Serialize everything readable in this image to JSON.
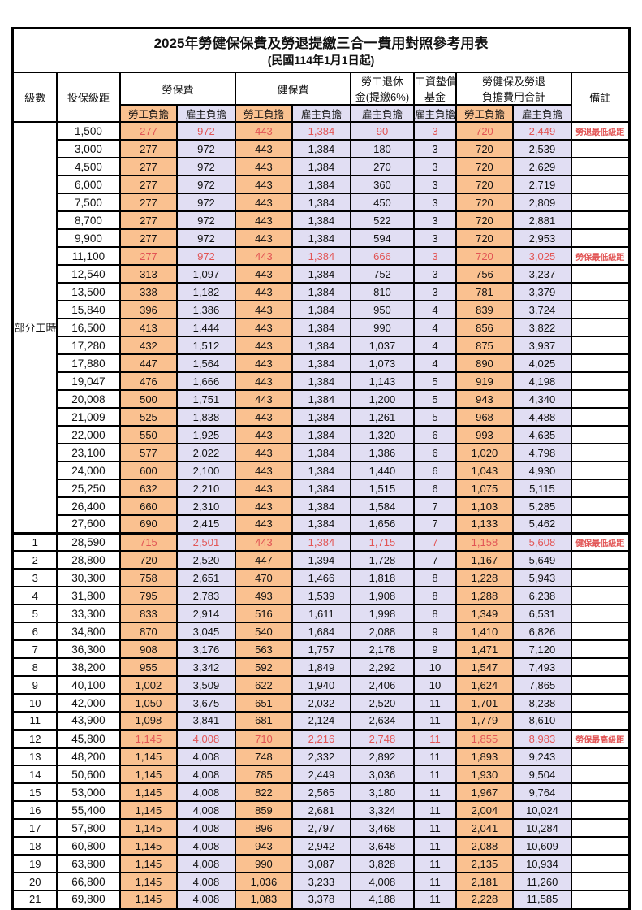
{
  "title": "2025年勞健保保費及勞退提繳三合一費用對照參考用表",
  "subtitle": "(民國114年1月1日起)",
  "colors": {
    "employee_bg": "#fac190",
    "employer_bg": "#e1def3",
    "highlight_red": "#e25555",
    "border": "#000000"
  },
  "header": {
    "level": "級數",
    "bracket": "投保級距",
    "labor_insurance": "勞保費",
    "health_insurance": "健保費",
    "pension_line1": "勞工退休",
    "pension_line2": "金(提繳6%)",
    "wage_fund_line1": "工資墊償",
    "wage_fund_line2": "基金",
    "total_line1": "勞健保及勞退",
    "total_line2": "負擔費用合計",
    "remark": "備註",
    "employee_share": "勞工負擔",
    "employer_share": "雇主負擔",
    "part_time_label": "部分工時"
  },
  "part_time_rows": 23,
  "rows": [
    {
      "level": null,
      "bracket": "1,500",
      "values": [
        "277",
        "972",
        "443",
        "1,384",
        "90",
        "3",
        "720",
        "2,449"
      ],
      "note": "勞退最低級距",
      "red": true,
      "thick": false
    },
    {
      "level": null,
      "bracket": "3,000",
      "values": [
        "277",
        "972",
        "443",
        "1,384",
        "180",
        "3",
        "720",
        "2,539"
      ],
      "note": "",
      "red": false,
      "thick": false
    },
    {
      "level": null,
      "bracket": "4,500",
      "values": [
        "277",
        "972",
        "443",
        "1,384",
        "270",
        "3",
        "720",
        "2,629"
      ],
      "note": "",
      "red": false,
      "thick": false
    },
    {
      "level": null,
      "bracket": "6,000",
      "values": [
        "277",
        "972",
        "443",
        "1,384",
        "360",
        "3",
        "720",
        "2,719"
      ],
      "note": "",
      "red": false,
      "thick": false
    },
    {
      "level": null,
      "bracket": "7,500",
      "values": [
        "277",
        "972",
        "443",
        "1,384",
        "450",
        "3",
        "720",
        "2,809"
      ],
      "note": "",
      "red": false,
      "thick": false
    },
    {
      "level": null,
      "bracket": "8,700",
      "values": [
        "277",
        "972",
        "443",
        "1,384",
        "522",
        "3",
        "720",
        "2,881"
      ],
      "note": "",
      "red": false,
      "thick": false
    },
    {
      "level": null,
      "bracket": "9,900",
      "values": [
        "277",
        "972",
        "443",
        "1,384",
        "594",
        "3",
        "720",
        "2,953"
      ],
      "note": "",
      "red": false,
      "thick": false
    },
    {
      "level": null,
      "bracket": "11,100",
      "values": [
        "277",
        "972",
        "443",
        "1,384",
        "666",
        "3",
        "720",
        "3,025"
      ],
      "note": "勞保最低級距",
      "red": true,
      "thick": false
    },
    {
      "level": null,
      "bracket": "12,540",
      "values": [
        "313",
        "1,097",
        "443",
        "1,384",
        "752",
        "3",
        "756",
        "3,237"
      ],
      "note": "",
      "red": false,
      "thick": false
    },
    {
      "level": null,
      "bracket": "13,500",
      "values": [
        "338",
        "1,182",
        "443",
        "1,384",
        "810",
        "3",
        "781",
        "3,379"
      ],
      "note": "",
      "red": false,
      "thick": false
    },
    {
      "level": null,
      "bracket": "15,840",
      "values": [
        "396",
        "1,386",
        "443",
        "1,384",
        "950",
        "4",
        "839",
        "3,724"
      ],
      "note": "",
      "red": false,
      "thick": false
    },
    {
      "level": null,
      "bracket": "16,500",
      "values": [
        "413",
        "1,444",
        "443",
        "1,384",
        "990",
        "4",
        "856",
        "3,822"
      ],
      "note": "",
      "red": false,
      "thick": false
    },
    {
      "level": null,
      "bracket": "17,280",
      "values": [
        "432",
        "1,512",
        "443",
        "1,384",
        "1,037",
        "4",
        "875",
        "3,937"
      ],
      "note": "",
      "red": false,
      "thick": false
    },
    {
      "level": null,
      "bracket": "17,880",
      "values": [
        "447",
        "1,564",
        "443",
        "1,384",
        "1,073",
        "4",
        "890",
        "4,025"
      ],
      "note": "",
      "red": false,
      "thick": false
    },
    {
      "level": null,
      "bracket": "19,047",
      "values": [
        "476",
        "1,666",
        "443",
        "1,384",
        "1,143",
        "5",
        "919",
        "4,198"
      ],
      "note": "",
      "red": false,
      "thick": false
    },
    {
      "level": null,
      "bracket": "20,008",
      "values": [
        "500",
        "1,751",
        "443",
        "1,384",
        "1,200",
        "5",
        "943",
        "4,340"
      ],
      "note": "",
      "red": false,
      "thick": false
    },
    {
      "level": null,
      "bracket": "21,009",
      "values": [
        "525",
        "1,838",
        "443",
        "1,384",
        "1,261",
        "5",
        "968",
        "4,488"
      ],
      "note": "",
      "red": false,
      "thick": false
    },
    {
      "level": null,
      "bracket": "22,000",
      "values": [
        "550",
        "1,925",
        "443",
        "1,384",
        "1,320",
        "6",
        "993",
        "4,635"
      ],
      "note": "",
      "red": false,
      "thick": false
    },
    {
      "level": null,
      "bracket": "23,100",
      "values": [
        "577",
        "2,022",
        "443",
        "1,384",
        "1,386",
        "6",
        "1,020",
        "4,798"
      ],
      "note": "",
      "red": false,
      "thick": false
    },
    {
      "level": null,
      "bracket": "24,000",
      "values": [
        "600",
        "2,100",
        "443",
        "1,384",
        "1,440",
        "6",
        "1,043",
        "4,930"
      ],
      "note": "",
      "red": false,
      "thick": false
    },
    {
      "level": null,
      "bracket": "25,250",
      "values": [
        "632",
        "2,210",
        "443",
        "1,384",
        "1,515",
        "6",
        "1,075",
        "5,115"
      ],
      "note": "",
      "red": false,
      "thick": false
    },
    {
      "level": null,
      "bracket": "26,400",
      "values": [
        "660",
        "2,310",
        "443",
        "1,384",
        "1,584",
        "7",
        "1,103",
        "5,285"
      ],
      "note": "",
      "red": false,
      "thick": false
    },
    {
      "level": null,
      "bracket": "27,600",
      "values": [
        "690",
        "2,415",
        "443",
        "1,384",
        "1,656",
        "7",
        "1,133",
        "5,462"
      ],
      "note": "",
      "red": false,
      "thick": false
    },
    {
      "level": "1",
      "bracket": "28,590",
      "values": [
        "715",
        "2,501",
        "443",
        "1,384",
        "1,715",
        "7",
        "1,158",
        "5,608"
      ],
      "note": "健保最低級距",
      "red": true,
      "thick": true
    },
    {
      "level": "2",
      "bracket": "28,800",
      "values": [
        "720",
        "2,520",
        "447",
        "1,394",
        "1,728",
        "7",
        "1,167",
        "5,649"
      ],
      "note": "",
      "red": false,
      "thick": false
    },
    {
      "level": "3",
      "bracket": "30,300",
      "values": [
        "758",
        "2,651",
        "470",
        "1,466",
        "1,818",
        "8",
        "1,228",
        "5,943"
      ],
      "note": "",
      "red": false,
      "thick": false
    },
    {
      "level": "4",
      "bracket": "31,800",
      "values": [
        "795",
        "2,783",
        "493",
        "1,539",
        "1,908",
        "8",
        "1,288",
        "6,238"
      ],
      "note": "",
      "red": false,
      "thick": false
    },
    {
      "level": "5",
      "bracket": "33,300",
      "values": [
        "833",
        "2,914",
        "516",
        "1,611",
        "1,998",
        "8",
        "1,349",
        "6,531"
      ],
      "note": "",
      "red": false,
      "thick": false
    },
    {
      "level": "6",
      "bracket": "34,800",
      "values": [
        "870",
        "3,045",
        "540",
        "1,684",
        "2,088",
        "9",
        "1,410",
        "6,826"
      ],
      "note": "",
      "red": false,
      "thick": false
    },
    {
      "level": "7",
      "bracket": "36,300",
      "values": [
        "908",
        "3,176",
        "563",
        "1,757",
        "2,178",
        "9",
        "1,471",
        "7,120"
      ],
      "note": "",
      "red": false,
      "thick": false
    },
    {
      "level": "8",
      "bracket": "38,200",
      "values": [
        "955",
        "3,342",
        "592",
        "1,849",
        "2,292",
        "10",
        "1,547",
        "7,493"
      ],
      "note": "",
      "red": false,
      "thick": false
    },
    {
      "level": "9",
      "bracket": "40,100",
      "values": [
        "1,002",
        "3,509",
        "622",
        "1,940",
        "2,406",
        "10",
        "1,624",
        "7,865"
      ],
      "note": "",
      "red": false,
      "thick": false
    },
    {
      "level": "10",
      "bracket": "42,000",
      "values": [
        "1,050",
        "3,675",
        "651",
        "2,032",
        "2,520",
        "11",
        "1,701",
        "8,238"
      ],
      "note": "",
      "red": false,
      "thick": false
    },
    {
      "level": "11",
      "bracket": "43,900",
      "values": [
        "1,098",
        "3,841",
        "681",
        "2,124",
        "2,634",
        "11",
        "1,779",
        "8,610"
      ],
      "note": "",
      "red": false,
      "thick": false
    },
    {
      "level": "12",
      "bracket": "45,800",
      "values": [
        "1,145",
        "4,008",
        "710",
        "2,216",
        "2,748",
        "11",
        "1,855",
        "8,983"
      ],
      "note": "勞保最高級距",
      "red": true,
      "thick": true
    },
    {
      "level": "13",
      "bracket": "48,200",
      "values": [
        "1,145",
        "4,008",
        "748",
        "2,332",
        "2,892",
        "11",
        "1,893",
        "9,243"
      ],
      "note": "",
      "red": false,
      "thick": false
    },
    {
      "level": "14",
      "bracket": "50,600",
      "values": [
        "1,145",
        "4,008",
        "785",
        "2,449",
        "3,036",
        "11",
        "1,930",
        "9,504"
      ],
      "note": "",
      "red": false,
      "thick": false
    },
    {
      "level": "15",
      "bracket": "53,000",
      "values": [
        "1,145",
        "4,008",
        "822",
        "2,565",
        "3,180",
        "11",
        "1,967",
        "9,764"
      ],
      "note": "",
      "red": false,
      "thick": false
    },
    {
      "level": "16",
      "bracket": "55,400",
      "values": [
        "1,145",
        "4,008",
        "859",
        "2,681",
        "3,324",
        "11",
        "2,004",
        "10,024"
      ],
      "note": "",
      "red": false,
      "thick": false
    },
    {
      "level": "17",
      "bracket": "57,800",
      "values": [
        "1,145",
        "4,008",
        "896",
        "2,797",
        "3,468",
        "11",
        "2,041",
        "10,284"
      ],
      "note": "",
      "red": false,
      "thick": false
    },
    {
      "level": "18",
      "bracket": "60,800",
      "values": [
        "1,145",
        "4,008",
        "943",
        "2,942",
        "3,648",
        "11",
        "2,088",
        "10,609"
      ],
      "note": "",
      "red": false,
      "thick": false
    },
    {
      "level": "19",
      "bracket": "63,800",
      "values": [
        "1,145",
        "4,008",
        "990",
        "3,087",
        "3,828",
        "11",
        "2,135",
        "10,934"
      ],
      "note": "",
      "red": false,
      "thick": false
    },
    {
      "level": "20",
      "bracket": "66,800",
      "values": [
        "1,145",
        "4,008",
        "1,036",
        "3,233",
        "4,008",
        "11",
        "2,181",
        "11,260"
      ],
      "note": "",
      "red": false,
      "thick": false
    },
    {
      "level": "21",
      "bracket": "69,800",
      "values": [
        "1,145",
        "4,008",
        "1,083",
        "3,378",
        "4,188",
        "11",
        "2,228",
        "11,585"
      ],
      "note": "",
      "red": false,
      "thick": false
    }
  ]
}
